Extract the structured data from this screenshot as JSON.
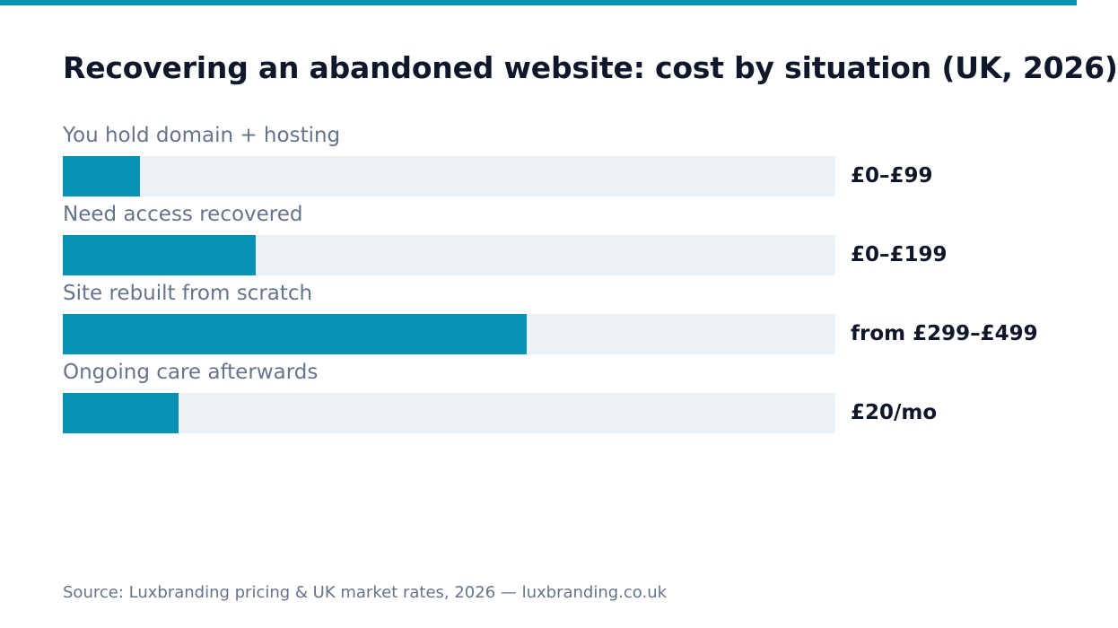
{
  "colors": {
    "accent": "#0891b2",
    "track": "#edf2f7",
    "title_text": "#0f172a",
    "muted_text": "#64748b"
  },
  "chart_data": {
    "type": "bar",
    "orientation": "horizontal",
    "title": "Recovering an abandoned website: cost by situation (UK, 2026)",
    "categories": [
      "You hold domain + hosting",
      "Need access recovered",
      "Site rebuilt from scratch",
      "Ongoing care afterwards"
    ],
    "values": [
      0.1,
      0.25,
      0.6,
      0.15
    ],
    "value_labels": [
      "£0–£99",
      "£0–£199",
      "from £299–£499",
      "£20/mo"
    ],
    "xlim": [
      0,
      1
    ],
    "grid": false,
    "legend": "none"
  },
  "footer": {
    "source": "Source: Luxbranding pricing & UK market rates, 2026 — luxbranding.co.uk"
  }
}
